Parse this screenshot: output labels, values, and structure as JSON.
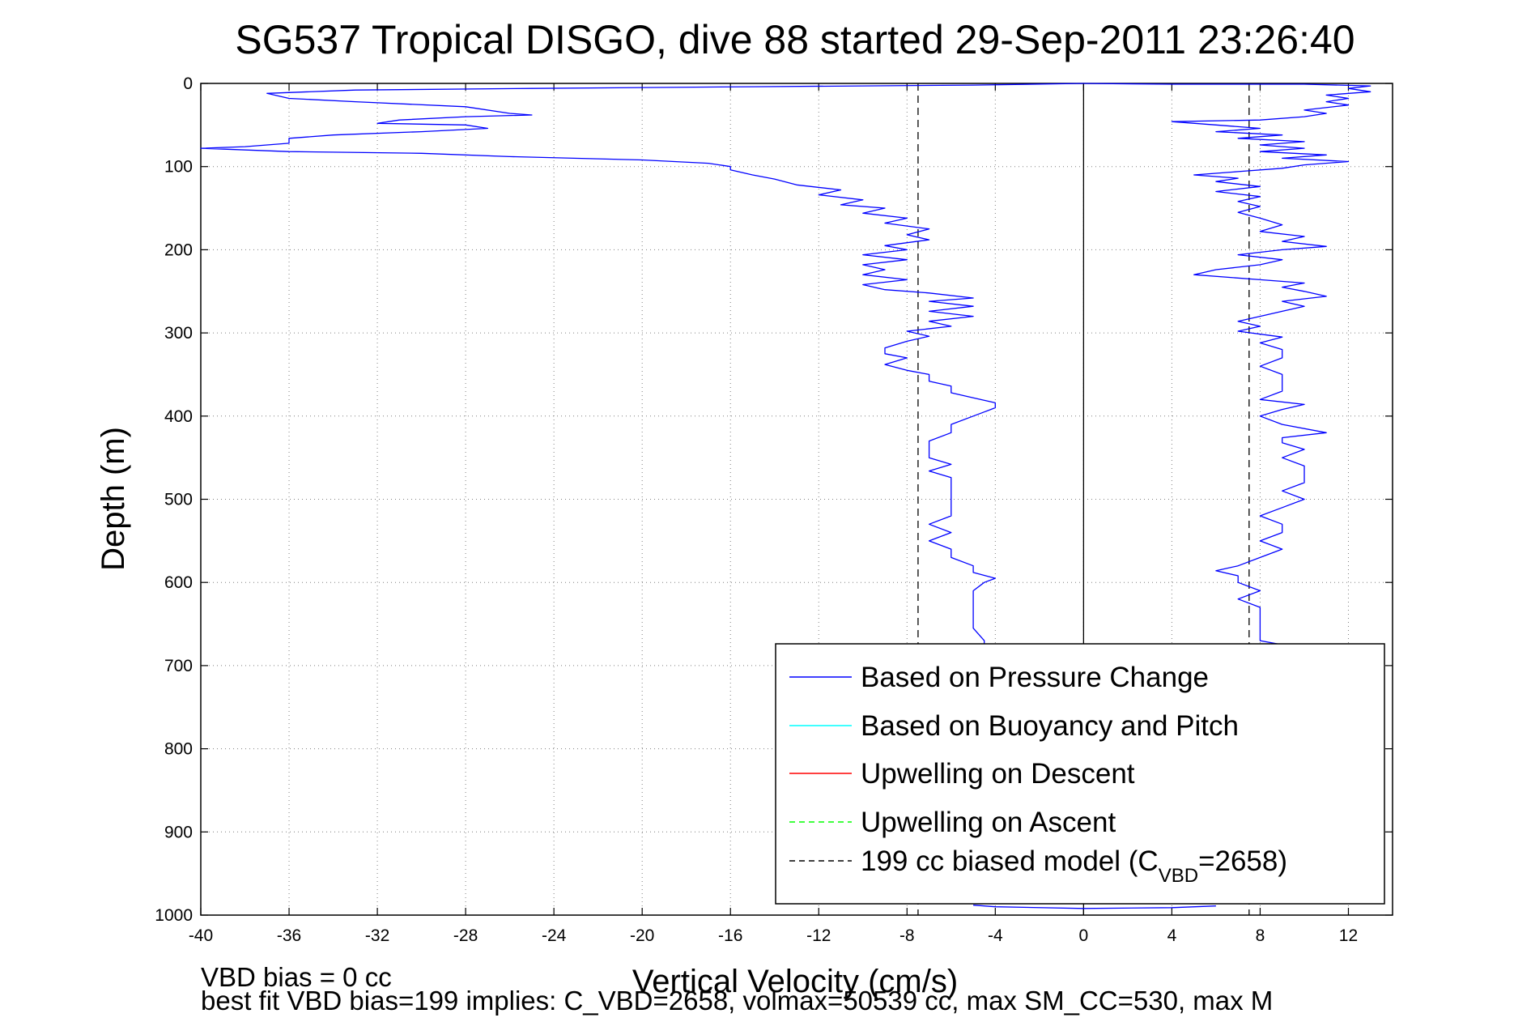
{
  "chart_data": {
    "type": "line",
    "title": "SG537 Tropical DISGO, dive 88 started 29-Sep-2011 23:26:40",
    "xlabel": "Vertical Velocity (cm/s)",
    "ylabel": "Depth (m)",
    "xlim": [
      -40,
      14
    ],
    "ylim": [
      0,
      1000
    ],
    "y_reversed": true,
    "grid": true,
    "x_ticks": [
      -40,
      -36,
      -32,
      -28,
      -24,
      -20,
      -16,
      -12,
      -8,
      -4,
      0,
      4,
      8,
      12
    ],
    "x_tick_labels": [
      "-40",
      "-36",
      "-32",
      "-28",
      "-24",
      "-20",
      "-16",
      "-12",
      "-8",
      "-4",
      "0",
      "4",
      "8",
      "12"
    ],
    "y_ticks": [
      0,
      100,
      200,
      300,
      400,
      500,
      600,
      700,
      800,
      900,
      1000
    ],
    "y_tick_labels": [
      "0",
      "100",
      "200",
      "300",
      "400",
      "500",
      "600",
      "700",
      "800",
      "900",
      "1000"
    ],
    "legend_position": "bottom-right",
    "legend": [
      {
        "label": "Based on Pressure Change",
        "color": "#0000ff",
        "style": "solid"
      },
      {
        "label": "Based on Buoyancy and Pitch",
        "color": "#00ffff",
        "style": "solid"
      },
      {
        "label": "Upwelling on Descent",
        "color": "#ff0000",
        "style": "solid"
      },
      {
        "label": "Upwelling on Ascent",
        "color": "#00ff00",
        "style": "dashed"
      },
      {
        "label_main": "199 cc biased model (C",
        "label_sub": "VBD",
        "label_end": "=2658)",
        "color": "#000000",
        "style": "dashed"
      }
    ],
    "reference_lines": [
      {
        "type": "vertical",
        "x": 0,
        "color": "#000000",
        "style": "solid"
      },
      {
        "type": "vertical",
        "x": -7.5,
        "color": "#000000",
        "style": "dashed"
      },
      {
        "type": "vertical",
        "x": 7.5,
        "color": "#000000",
        "style": "dashed"
      }
    ],
    "series": [
      {
        "name": "Based on Pressure Change",
        "color": "#0000ff",
        "segments": [
          {
            "phase": "descent",
            "points": [
              [
                0,
                0
              ],
              [
                -5,
                2
              ],
              [
                -15,
                4
              ],
              [
                -25,
                6
              ],
              [
                -33,
                8
              ],
              [
                -37,
                12
              ],
              [
                -36,
                18
              ],
              [
                -33,
                22
              ],
              [
                -28,
                28
              ],
              [
                -26,
                36
              ],
              [
                -25,
                38
              ],
              [
                -28,
                40
              ],
              [
                -31,
                44
              ],
              [
                -32,
                48
              ],
              [
                -28,
                50
              ],
              [
                -27,
                54
              ],
              [
                -30,
                58
              ],
              [
                -34,
                62
              ],
              [
                -36,
                66
              ],
              [
                -36,
                72
              ],
              [
                -38,
                76
              ],
              [
                -40,
                78
              ],
              [
                -36,
                82
              ],
              [
                -30,
                84
              ],
              [
                -26,
                88
              ],
              [
                -20,
                92
              ],
              [
                -17,
                96
              ],
              [
                -16,
                100
              ],
              [
                -16,
                104
              ],
              [
                -15,
                110
              ],
              [
                -14,
                115
              ],
              [
                -13,
                122
              ],
              [
                -11,
                128
              ],
              [
                -12,
                134
              ],
              [
                -10,
                140
              ],
              [
                -11,
                146
              ],
              [
                -9,
                150
              ],
              [
                -10,
                156
              ],
              [
                -8,
                162
              ],
              [
                -9,
                168
              ],
              [
                -7,
                175
              ],
              [
                -8,
                182
              ],
              [
                -7,
                188
              ],
              [
                -9,
                195
              ],
              [
                -8,
                200
              ],
              [
                -10,
                206
              ],
              [
                -8,
                212
              ],
              [
                -10,
                218
              ],
              [
                -9,
                224
              ],
              [
                -10,
                230
              ],
              [
                -8,
                236
              ],
              [
                -10,
                242
              ],
              [
                -9,
                248
              ],
              [
                -7,
                252
              ],
              [
                -5,
                258
              ],
              [
                -7,
                262
              ],
              [
                -5,
                268
              ],
              [
                -7,
                274
              ],
              [
                -5,
                280
              ],
              [
                -7,
                286
              ],
              [
                -6,
                292
              ],
              [
                -8,
                298
              ],
              [
                -7,
                304
              ],
              [
                -8,
                310
              ],
              [
                -9,
                318
              ],
              [
                -9,
                325
              ],
              [
                -8,
                330
              ],
              [
                -9,
                338
              ],
              [
                -8,
                345
              ],
              [
                -7,
                350
              ],
              [
                -7,
                358
              ],
              [
                -6,
                364
              ],
              [
                -6,
                372
              ],
              [
                -5,
                378
              ],
              [
                -4,
                384
              ],
              [
                -4,
                390
              ],
              [
                -4.5,
                395
              ],
              [
                -5,
                400
              ],
              [
                -6,
                410
              ],
              [
                -6,
                420
              ],
              [
                -7,
                430
              ],
              [
                -7,
                440
              ],
              [
                -7,
                450
              ],
              [
                -6,
                458
              ],
              [
                -7,
                466
              ],
              [
                -6,
                474
              ],
              [
                -6,
                482
              ],
              [
                -6,
                490
              ],
              [
                -6,
                500
              ],
              [
                -6,
                510
              ],
              [
                -6,
                520
              ],
              [
                -7,
                530
              ],
              [
                -6,
                540
              ],
              [
                -7,
                550
              ],
              [
                -6,
                560
              ],
              [
                -6,
                570
              ],
              [
                -5,
                580
              ],
              [
                -5,
                588
              ],
              [
                -4,
                595
              ],
              [
                -4.5,
                600
              ],
              [
                -5,
                610
              ],
              [
                -5,
                625
              ],
              [
                -5,
                640
              ],
              [
                -5,
                655
              ],
              [
                -4.5,
                670
              ],
              [
                -4.5,
                685
              ]
            ]
          },
          {
            "phase": "ascent",
            "points": [
              [
                0,
                0
              ],
              [
                4,
                1
              ],
              [
                10,
                1
              ],
              [
                13,
                3
              ],
              [
                12,
                6
              ],
              [
                13,
                10
              ],
              [
                11,
                14
              ],
              [
                12,
                18
              ],
              [
                11,
                22
              ],
              [
                12,
                26
              ],
              [
                10,
                32
              ],
              [
                11,
                36
              ],
              [
                10,
                40
              ],
              [
                8,
                44
              ],
              [
                4,
                46
              ],
              [
                6,
                50
              ],
              [
                8,
                54
              ],
              [
                6,
                58
              ],
              [
                9,
                62
              ],
              [
                7,
                66
              ],
              [
                10,
                70
              ],
              [
                8,
                74
              ],
              [
                10,
                78
              ],
              [
                8,
                82
              ],
              [
                11,
                86
              ],
              [
                9,
                90
              ],
              [
                12,
                94
              ],
              [
                10,
                98
              ],
              [
                9,
                102
              ],
              [
                7,
                106
              ],
              [
                5,
                110
              ],
              [
                7,
                114
              ],
              [
                6,
                118
              ],
              [
                8,
                124
              ],
              [
                6,
                130
              ],
              [
                8,
                136
              ],
              [
                7,
                142
              ],
              [
                8,
                148
              ],
              [
                7,
                155
              ],
              [
                8,
                162
              ],
              [
                9,
                170
              ],
              [
                8,
                178
              ],
              [
                10,
                184
              ],
              [
                9,
                190
              ],
              [
                11,
                196
              ],
              [
                9,
                200
              ],
              [
                7,
                206
              ],
              [
                9,
                212
              ],
              [
                8,
                218
              ],
              [
                6,
                224
              ],
              [
                5,
                230
              ],
              [
                8,
                236
              ],
              [
                10,
                240
              ],
              [
                9,
                245
              ],
              [
                10,
                250
              ],
              [
                11,
                256
              ],
              [
                9,
                262
              ],
              [
                10,
                268
              ],
              [
                9,
                274
              ],
              [
                8,
                280
              ],
              [
                7,
                286
              ],
              [
                8,
                292
              ],
              [
                7,
                298
              ],
              [
                9,
                305
              ],
              [
                8,
                312
              ],
              [
                9,
                320
              ],
              [
                9,
                330
              ],
              [
                8,
                340
              ],
              [
                9,
                350
              ],
              [
                9,
                360
              ],
              [
                9,
                370
              ],
              [
                8,
                380
              ],
              [
                10,
                386
              ],
              [
                9,
                392
              ],
              [
                8,
                400
              ],
              [
                9,
                410
              ],
              [
                11,
                420
              ],
              [
                9,
                426
              ],
              [
                9,
                432
              ],
              [
                10,
                440
              ],
              [
                9,
                450
              ],
              [
                10,
                460
              ],
              [
                10,
                470
              ],
              [
                10,
                480
              ],
              [
                9,
                490
              ],
              [
                10,
                500
              ],
              [
                9,
                510
              ],
              [
                8,
                520
              ],
              [
                9,
                530
              ],
              [
                9,
                540
              ],
              [
                8,
                550
              ],
              [
                9,
                560
              ],
              [
                8,
                570
              ],
              [
                7,
                580
              ],
              [
                6,
                586
              ],
              [
                7,
                592
              ],
              [
                7,
                600
              ],
              [
                8,
                610
              ],
              [
                7,
                620
              ],
              [
                8,
                630
              ],
              [
                8,
                640
              ],
              [
                8,
                650
              ],
              [
                8,
                660
              ],
              [
                8,
                670
              ],
              [
                9,
                675
              ]
            ]
          },
          {
            "phase": "bottom",
            "points": [
              [
                -5,
                988
              ],
              [
                -4,
                990
              ],
              [
                0,
                992
              ],
              [
                4,
                991
              ],
              [
                6,
                989
              ]
            ]
          }
        ]
      }
    ]
  },
  "footnote": {
    "line1": "VBD bias = 0 cc",
    "line2": "best fit VBD bias=199 implies: C_VBD=2658, volmax=50539 cc, max SM_CC=530, max M"
  }
}
